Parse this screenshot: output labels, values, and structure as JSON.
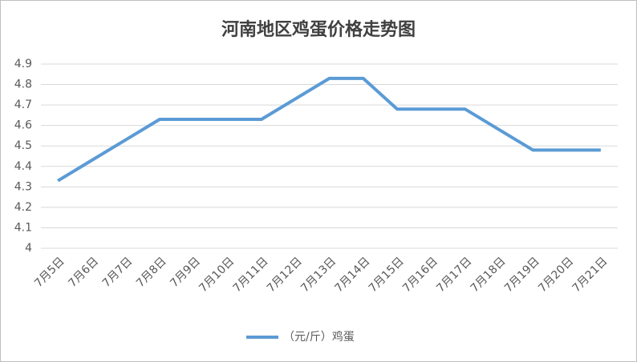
{
  "chart_data": {
    "type": "line",
    "title": "河南地区鸡蛋价格走势图",
    "categories": [
      "7月5日",
      "7月6日",
      "7月7日",
      "7月8日",
      "7月9日",
      "7月10日",
      "7月11日",
      "7月12日",
      "7月13日",
      "7月14日",
      "7月15日",
      "7月16日",
      "7月17日",
      "7月18日",
      "7月19日",
      "7月20日",
      "7月21日"
    ],
    "series": [
      {
        "name": "（元/斤）鸡蛋",
        "color": "#5b9bd5",
        "values": [
          4.33,
          4.43,
          4.53,
          4.63,
          4.63,
          4.63,
          4.63,
          4.73,
          4.83,
          4.83,
          4.68,
          4.68,
          4.68,
          4.58,
          4.48,
          4.48,
          4.48
        ]
      }
    ],
    "ylim": [
      4,
      4.9
    ],
    "yticks": [
      4,
      4.1,
      4.2,
      4.3,
      4.4,
      4.5,
      4.6,
      4.7,
      4.8,
      4.9
    ],
    "grid": true,
    "legend": "bottom"
  }
}
